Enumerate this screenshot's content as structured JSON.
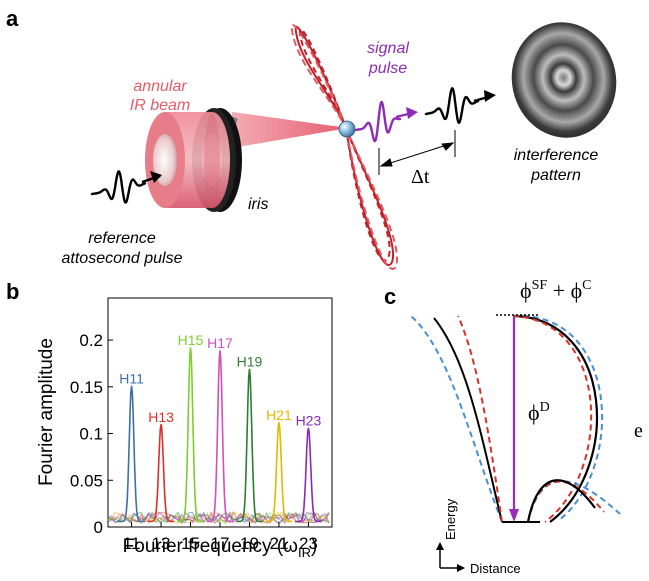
{
  "panel_a": {
    "letter": "a",
    "annular_label": [
      "annular",
      "IR beam"
    ],
    "signal_label": [
      "signal",
      "pulse"
    ],
    "iris_label": "iris",
    "reference_label": [
      "reference",
      "attosecond pulse"
    ],
    "interference_label": [
      "interference",
      "pattern"
    ],
    "delay_label": "Δt",
    "colors": {
      "ir_beam": "#e85a66",
      "signal": "#8e2cb5",
      "ir_field": "#c0212a"
    }
  },
  "panel_b": {
    "letter": "b",
    "chart_data": {
      "type": "line",
      "xlabel": "Fourier frequency (ω",
      "xlabel_sub": "IR",
      "xlabel_end": ")",
      "ylabel": "Fourier amplitude",
      "xlim": [
        9.4,
        24.6
      ],
      "ylim": [
        0,
        0.245
      ],
      "xticks": [
        11,
        13,
        15,
        17,
        19,
        21,
        23
      ],
      "yticks": [
        0,
        0.05,
        0.1,
        0.15,
        0.2
      ],
      "ytick_labels": [
        "0",
        "0.05",
        "0.1",
        "0.15",
        "0.2"
      ],
      "series": [
        {
          "name": "H11",
          "x": 11,
          "y": 0.145,
          "color": "#3e6fa8"
        },
        {
          "name": "H13",
          "x": 13,
          "y": 0.104,
          "color": "#d8312a"
        },
        {
          "name": "H15",
          "x": 15,
          "y": 0.186,
          "color": "#7ccf2c"
        },
        {
          "name": "H17",
          "x": 17,
          "y": 0.183,
          "color": "#d24fbf"
        },
        {
          "name": "H19",
          "x": 19,
          "y": 0.163,
          "color": "#2e7d32"
        },
        {
          "name": "H21",
          "x": 21,
          "y": 0.106,
          "color": "#e3b800"
        },
        {
          "name": "H23",
          "x": 23,
          "y": 0.1,
          "color": "#8a2bb5"
        }
      ]
    }
  },
  "panel_c": {
    "letter": "c",
    "phi_top": "ϕ",
    "phi_top_sup1": "SF",
    "phi_top_plus": " + ϕ",
    "phi_top_sup2": "C",
    "phi_d": "ϕ",
    "phi_d_sup": "D",
    "electron_label": "e",
    "energy_label": "Energy",
    "distance_label": "Distance",
    "colors": {
      "solid": "#000000",
      "blue_dash": "#4a8fd1",
      "red_dash": "#d8312a",
      "arrow": "#9a2bb8"
    }
  }
}
